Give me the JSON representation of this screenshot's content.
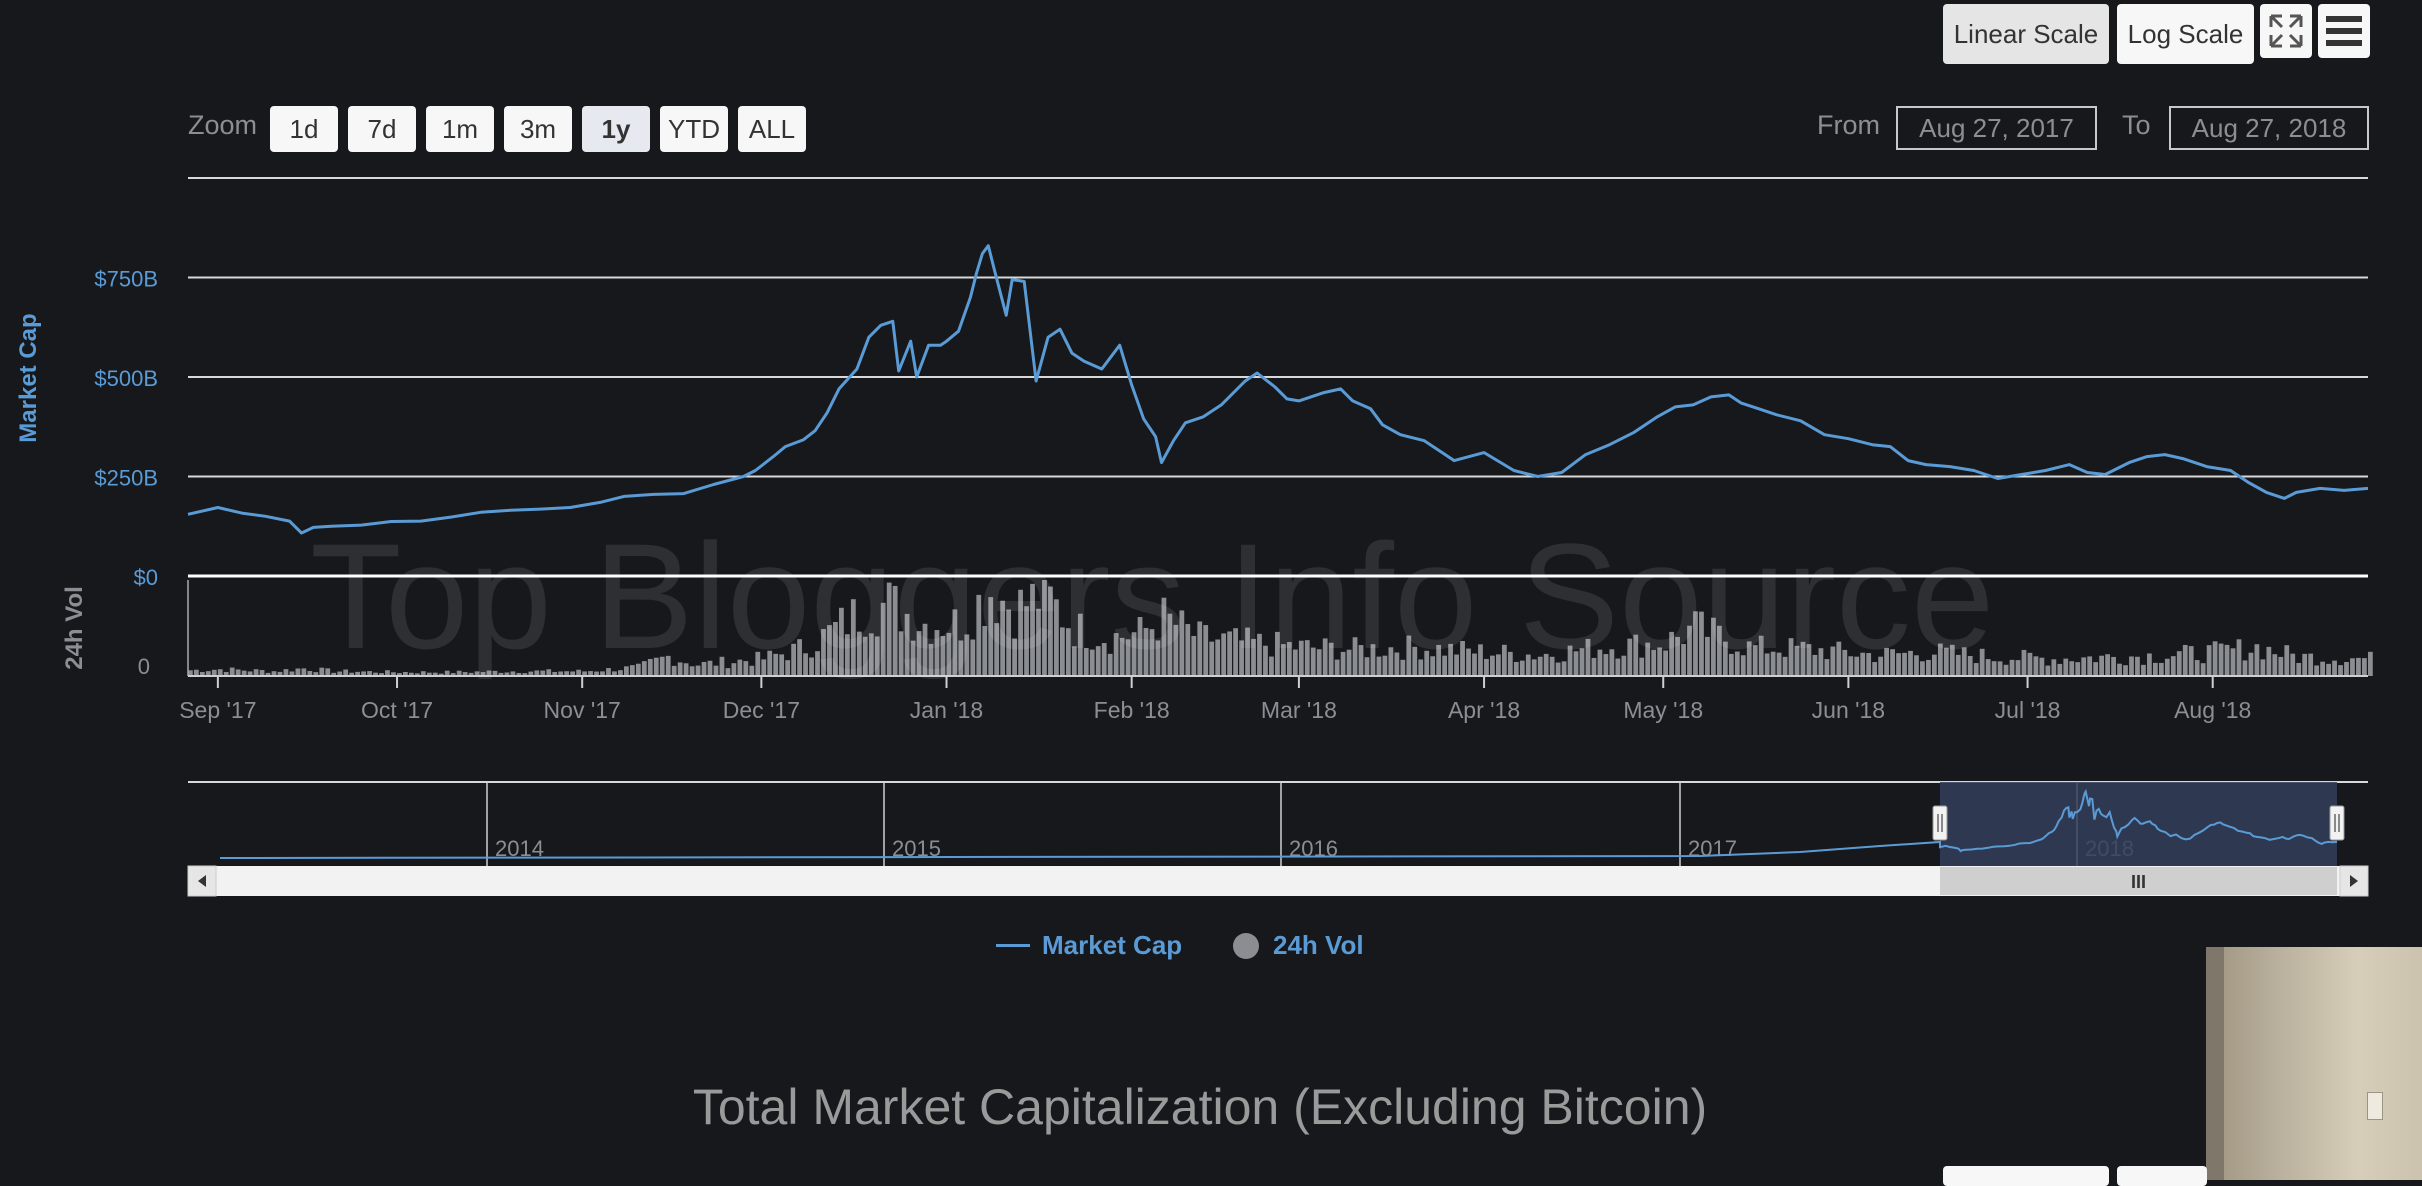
{
  "toolbar": {
    "linear_scale": "Linear Scale",
    "log_scale": "Log Scale",
    "fullscreen_icon": "fullscreen-icon",
    "menu_icon": "hamburger-menu-icon"
  },
  "zoom": {
    "label": "Zoom",
    "buttons": [
      "1d",
      "7d",
      "1m",
      "3m",
      "1y",
      "YTD",
      "ALL"
    ],
    "selected": "1y"
  },
  "range": {
    "from_label": "From",
    "from_value": "Aug 27, 2017",
    "to_label": "To",
    "to_value": "Aug 27, 2018"
  },
  "watermark": "Top Bloggers Info Source",
  "legend": {
    "market_cap": "Market Cap",
    "volume": "24h Vol"
  },
  "caption": "Total Market Capitalization (Excluding Bitcoin)",
  "colors": {
    "background": "#16181c",
    "line": "#5b9bd5",
    "volume_bars": "#8a8d92",
    "gridline": "#d8d8d8",
    "axis_text": "#8b8e94",
    "y_label_text": "#5b9bd5",
    "navigator_mask": "#33405a"
  },
  "chart_data": {
    "type": "line",
    "xlabel": "",
    "ylabel": "Market Cap",
    "ylim": [
      0,
      1000
    ],
    "yticks": [
      {
        "value": 0,
        "label": "$0"
      },
      {
        "value": 250,
        "label": "$250B"
      },
      {
        "value": 500,
        "label": "$500B"
      },
      {
        "value": 750,
        "label": "$750B"
      }
    ],
    "xticks": [
      {
        "date": "2017-09-01",
        "label": "Sep '17"
      },
      {
        "date": "2017-10-01",
        "label": "Oct '17"
      },
      {
        "date": "2017-11-01",
        "label": "Nov '17"
      },
      {
        "date": "2017-12-01",
        "label": "Dec '17"
      },
      {
        "date": "2018-01-01",
        "label": "Jan '18"
      },
      {
        "date": "2018-02-01",
        "label": "Feb '18"
      },
      {
        "date": "2018-03-01",
        "label": "Mar '18"
      },
      {
        "date": "2018-04-01",
        "label": "Apr '18"
      },
      {
        "date": "2018-05-01",
        "label": "May '18"
      },
      {
        "date": "2018-06-01",
        "label": "Jun '18"
      },
      {
        "date": "2018-07-01",
        "label": "Jul '18"
      },
      {
        "date": "2018-08-01",
        "label": "Aug '18"
      }
    ],
    "x_range": [
      "2017-08-27",
      "2018-08-27"
    ],
    "grid": true,
    "legend_position": "bottom",
    "series": [
      {
        "name": "Market Cap",
        "unit": "$B",
        "points": [
          [
            "2017-08-27",
            155
          ],
          [
            "2017-09-01",
            172
          ],
          [
            "2017-09-05",
            158
          ],
          [
            "2017-09-09",
            150
          ],
          [
            "2017-09-13",
            138
          ],
          [
            "2017-09-15",
            108
          ],
          [
            "2017-09-17",
            122
          ],
          [
            "2017-09-20",
            125
          ],
          [
            "2017-09-25",
            128
          ],
          [
            "2017-09-30",
            137
          ],
          [
            "2017-10-05",
            138
          ],
          [
            "2017-10-10",
            148
          ],
          [
            "2017-10-15",
            160
          ],
          [
            "2017-10-20",
            165
          ],
          [
            "2017-10-25",
            168
          ],
          [
            "2017-10-30",
            172
          ],
          [
            "2017-11-04",
            185
          ],
          [
            "2017-11-08",
            200
          ],
          [
            "2017-11-13",
            205
          ],
          [
            "2017-11-18",
            207
          ],
          [
            "2017-11-23",
            230
          ],
          [
            "2017-11-28",
            250
          ],
          [
            "2017-11-30",
            265
          ],
          [
            "2017-12-03",
            300
          ],
          [
            "2017-12-05",
            325
          ],
          [
            "2017-12-08",
            342
          ],
          [
            "2017-12-10",
            365
          ],
          [
            "2017-12-12",
            410
          ],
          [
            "2017-12-14",
            470
          ],
          [
            "2017-12-17",
            520
          ],
          [
            "2017-12-19",
            600
          ],
          [
            "2017-12-21",
            630
          ],
          [
            "2017-12-23",
            640
          ],
          [
            "2017-12-24",
            515
          ],
          [
            "2017-12-26",
            590
          ],
          [
            "2017-12-27",
            500
          ],
          [
            "2017-12-29",
            580
          ],
          [
            "2017-12-31",
            580
          ],
          [
            "2018-01-01",
            590
          ],
          [
            "2018-01-03",
            615
          ],
          [
            "2018-01-05",
            700
          ],
          [
            "2018-01-06",
            760
          ],
          [
            "2018-01-07",
            810
          ],
          [
            "2018-01-08",
            830
          ],
          [
            "2018-01-09",
            770
          ],
          [
            "2018-01-11",
            655
          ],
          [
            "2018-01-12",
            745
          ],
          [
            "2018-01-14",
            740
          ],
          [
            "2018-01-16",
            490
          ],
          [
            "2018-01-18",
            600
          ],
          [
            "2018-01-20",
            620
          ],
          [
            "2018-01-22",
            560
          ],
          [
            "2018-01-24",
            540
          ],
          [
            "2018-01-27",
            520
          ],
          [
            "2018-01-30",
            580
          ],
          [
            "2018-02-01",
            480
          ],
          [
            "2018-02-03",
            395
          ],
          [
            "2018-02-05",
            350
          ],
          [
            "2018-02-06",
            285
          ],
          [
            "2018-02-08",
            340
          ],
          [
            "2018-02-10",
            385
          ],
          [
            "2018-02-13",
            400
          ],
          [
            "2018-02-16",
            430
          ],
          [
            "2018-02-20",
            490
          ],
          [
            "2018-02-22",
            510
          ],
          [
            "2018-02-25",
            475
          ],
          [
            "2018-02-27",
            445
          ],
          [
            "2018-03-01",
            440
          ],
          [
            "2018-03-05",
            460
          ],
          [
            "2018-03-08",
            470
          ],
          [
            "2018-03-10",
            440
          ],
          [
            "2018-03-13",
            420
          ],
          [
            "2018-03-15",
            380
          ],
          [
            "2018-03-18",
            355
          ],
          [
            "2018-03-22",
            340
          ],
          [
            "2018-03-25",
            310
          ],
          [
            "2018-03-27",
            290
          ],
          [
            "2018-04-01",
            310
          ],
          [
            "2018-04-06",
            265
          ],
          [
            "2018-04-10",
            250
          ],
          [
            "2018-04-14",
            260
          ],
          [
            "2018-04-18",
            305
          ],
          [
            "2018-04-22",
            330
          ],
          [
            "2018-04-26",
            360
          ],
          [
            "2018-04-30",
            400
          ],
          [
            "2018-05-03",
            425
          ],
          [
            "2018-05-06",
            430
          ],
          [
            "2018-05-09",
            450
          ],
          [
            "2018-05-12",
            455
          ],
          [
            "2018-05-14",
            435
          ],
          [
            "2018-05-17",
            420
          ],
          [
            "2018-05-20",
            405
          ],
          [
            "2018-05-24",
            390
          ],
          [
            "2018-05-28",
            355
          ],
          [
            "2018-06-01",
            345
          ],
          [
            "2018-06-05",
            330
          ],
          [
            "2018-06-08",
            325
          ],
          [
            "2018-06-11",
            290
          ],
          [
            "2018-06-14",
            280
          ],
          [
            "2018-06-18",
            275
          ],
          [
            "2018-06-22",
            265
          ],
          [
            "2018-06-26",
            245
          ],
          [
            "2018-06-30",
            255
          ],
          [
            "2018-07-04",
            265
          ],
          [
            "2018-07-08",
            280
          ],
          [
            "2018-07-11",
            260
          ],
          [
            "2018-07-14",
            255
          ],
          [
            "2018-07-18",
            285
          ],
          [
            "2018-07-21",
            300
          ],
          [
            "2018-07-24",
            305
          ],
          [
            "2018-07-27",
            295
          ],
          [
            "2018-07-31",
            275
          ],
          [
            "2018-08-04",
            265
          ],
          [
            "2018-08-07",
            235
          ],
          [
            "2018-08-10",
            210
          ],
          [
            "2018-08-13",
            195
          ],
          [
            "2018-08-15",
            210
          ],
          [
            "2018-08-19",
            220
          ],
          [
            "2018-08-23",
            215
          ],
          [
            "2018-08-27",
            220
          ]
        ]
      },
      {
        "name": "24h Vol",
        "unit": "relative",
        "description": "volume bars, shown in lower panel; axis tick '0'",
        "points": [
          [
            "2017-08-27",
            6
          ],
          [
            "2017-09-01",
            7
          ],
          [
            "2017-09-10",
            5
          ],
          [
            "2017-09-15",
            8
          ],
          [
            "2017-09-20",
            5
          ],
          [
            "2017-10-01",
            4
          ],
          [
            "2017-10-10",
            4
          ],
          [
            "2017-10-20",
            5
          ],
          [
            "2017-11-01",
            5
          ],
          [
            "2017-11-10",
            9
          ],
          [
            "2017-11-15",
            20
          ],
          [
            "2017-11-20",
            12
          ],
          [
            "2017-12-01",
            18
          ],
          [
            "2017-12-08",
            30
          ],
          [
            "2017-12-12",
            45
          ],
          [
            "2017-12-18",
            70
          ],
          [
            "2017-12-22",
            75
          ],
          [
            "2017-12-28",
            55
          ],
          [
            "2018-01-03",
            55
          ],
          [
            "2018-01-08",
            90
          ],
          [
            "2018-01-12",
            70
          ],
          [
            "2018-01-17",
            85
          ],
          [
            "2018-01-22",
            50
          ],
          [
            "2018-01-28",
            40
          ],
          [
            "2018-02-02",
            45
          ],
          [
            "2018-02-06",
            60
          ],
          [
            "2018-02-12",
            40
          ],
          [
            "2018-02-20",
            35
          ],
          [
            "2018-03-01",
            30
          ],
          [
            "2018-03-10",
            28
          ],
          [
            "2018-03-20",
            30
          ],
          [
            "2018-04-01",
            25
          ],
          [
            "2018-04-10",
            22
          ],
          [
            "2018-04-20",
            30
          ],
          [
            "2018-05-01",
            35
          ],
          [
            "2018-05-06",
            50
          ],
          [
            "2018-05-15",
            30
          ],
          [
            "2018-05-25",
            28
          ],
          [
            "2018-06-05",
            22
          ],
          [
            "2018-06-15",
            25
          ],
          [
            "2018-06-25",
            20
          ],
          [
            "2018-07-05",
            18
          ],
          [
            "2018-07-15",
            20
          ],
          [
            "2018-07-25",
            22
          ],
          [
            "2018-08-01",
            25
          ],
          [
            "2018-08-08",
            30
          ],
          [
            "2018-08-15",
            20
          ],
          [
            "2018-08-27",
            18
          ]
        ]
      }
    ],
    "volume_axis": {
      "label": "24h Vol",
      "ticks": [
        "0"
      ]
    },
    "navigator": {
      "year_labels": [
        "2014",
        "2015",
        "2016",
        "2017",
        "2018"
      ],
      "selected_range": [
        "2017-08-27",
        "2018-08-27"
      ],
      "scrollbar_grip": "III"
    }
  }
}
